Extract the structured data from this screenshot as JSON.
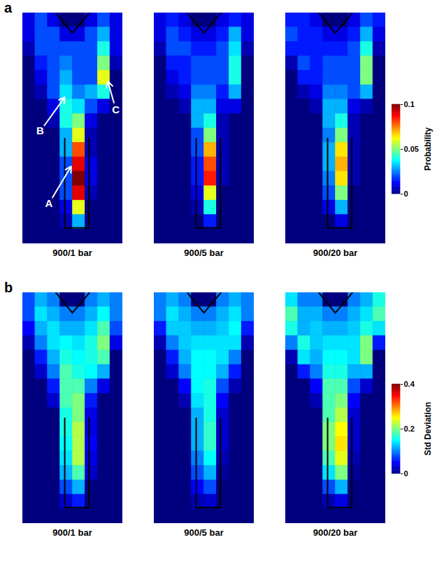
{
  "chart_data": [
    {
      "type": "heatmap",
      "panel": "a",
      "tick_labels": false,
      "color_label": "Probability",
      "color_range": [
        0,
        0.1
      ],
      "color_ticks": [
        0,
        0.05,
        0.1
      ],
      "panels": [
        {
          "label": "900/1 bar",
          "annotations": [
            {
              "text": "A",
              "from": [
                2.1,
                13.2
              ],
              "to": [
                3.9,
                10.6
              ]
            },
            {
              "text": "B",
              "from": [
                1.4,
                8.2
              ],
              "to": [
                3.4,
                5.8
              ]
            },
            {
              "text": "C",
              "from": [
                7.45,
                6.7
              ],
              "to": [
                6.8,
                4.7
              ]
            }
          ],
          "cells": [
            [
              0.01,
              0.02,
              0.01,
              0,
              0,
              0.01,
              0.02,
              0.01
            ],
            [
              0.01,
              0.02,
              0.02,
              0.01,
              0.01,
              0.02,
              0.03,
              0.01
            ],
            [
              0.005,
              0.02,
              0.02,
              0.02,
              0.02,
              0.02,
              0.04,
              0.01
            ],
            [
              0,
              0.015,
              0.02,
              0.025,
              0.02,
              0.02,
              0.05,
              0.005
            ],
            [
              0,
              0.01,
              0.02,
              0.03,
              0.02,
              0.02,
              0.06,
              0
            ],
            [
              0,
              0.005,
              0.02,
              0.035,
              0.025,
              0.03,
              0.04,
              0
            ],
            [
              0,
              0,
              0.01,
              0.04,
              0.035,
              0.02,
              0.01,
              0
            ],
            [
              0,
              0,
              0.005,
              0.04,
              0.05,
              0.01,
              0,
              0
            ],
            [
              0,
              0,
              0,
              0.03,
              0.06,
              0.005,
              0,
              0
            ],
            [
              0,
              0,
              0,
              0.03,
              0.08,
              0.005,
              0,
              0
            ],
            [
              0,
              0,
              0,
              0.02,
              0.09,
              0.01,
              0,
              0
            ],
            [
              0,
              0,
              0,
              0.02,
              0.1,
              0.01,
              0,
              0
            ],
            [
              0,
              0,
              0,
              0.02,
              0.09,
              0.005,
              0,
              0
            ],
            [
              0,
              0,
              0,
              0.01,
              0.06,
              0,
              0,
              0
            ],
            [
              0,
              0,
              0,
              0.005,
              0.03,
              0,
              0,
              0
            ],
            [
              0,
              0,
              0,
              0,
              0,
              0,
              0,
              0
            ]
          ]
        },
        {
          "label": "900/5 bar",
          "cells": [
            [
              0.01,
              0.015,
              0.01,
              0,
              0,
              0.01,
              0.015,
              0.01
            ],
            [
              0.01,
              0.02,
              0.015,
              0.01,
              0.01,
              0.015,
              0.03,
              0.01
            ],
            [
              0.005,
              0.02,
              0.02,
              0.015,
              0.015,
              0.02,
              0.035,
              0.005
            ],
            [
              0,
              0.015,
              0.015,
              0.02,
              0.02,
              0.02,
              0.04,
              0
            ],
            [
              0,
              0.01,
              0.015,
              0.02,
              0.02,
              0.02,
              0.04,
              0
            ],
            [
              0,
              0.005,
              0.01,
              0.025,
              0.025,
              0.015,
              0.03,
              0
            ],
            [
              0,
              0,
              0.005,
              0.03,
              0.03,
              0.01,
              0.01,
              0
            ],
            [
              0,
              0,
              0,
              0.03,
              0.04,
              0.005,
              0,
              0
            ],
            [
              0,
              0,
              0,
              0.02,
              0.05,
              0.005,
              0,
              0
            ],
            [
              0,
              0,
              0,
              0.02,
              0.07,
              0.005,
              0,
              0
            ],
            [
              0,
              0,
              0,
              0.015,
              0.08,
              0.005,
              0,
              0
            ],
            [
              0,
              0,
              0,
              0.015,
              0.085,
              0.005,
              0,
              0
            ],
            [
              0,
              0,
              0,
              0.01,
              0.06,
              0,
              0,
              0
            ],
            [
              0,
              0,
              0,
              0.005,
              0.04,
              0,
              0,
              0
            ],
            [
              0,
              0,
              0,
              0,
              0.015,
              0,
              0,
              0
            ],
            [
              0,
              0,
              0,
              0,
              0,
              0,
              0,
              0
            ]
          ]
        },
        {
          "label": "900/20 bar",
          "cells": [
            [
              0.015,
              0.015,
              0.01,
              0,
              0,
              0.01,
              0.02,
              0.015
            ],
            [
              0.02,
              0.015,
              0.015,
              0.01,
              0.01,
              0.015,
              0.03,
              0.01
            ],
            [
              0.015,
              0.015,
              0.015,
              0.015,
              0.015,
              0.02,
              0.04,
              0.005
            ],
            [
              0.005,
              0.02,
              0.015,
              0.02,
              0.02,
              0.02,
              0.05,
              0
            ],
            [
              0,
              0.015,
              0.015,
              0.02,
              0.02,
              0.02,
              0.05,
              0
            ],
            [
              0,
              0.005,
              0.01,
              0.025,
              0.025,
              0.02,
              0.03,
              0
            ],
            [
              0,
              0,
              0.005,
              0.03,
              0.03,
              0.01,
              0.005,
              0
            ],
            [
              0,
              0,
              0,
              0.03,
              0.04,
              0.005,
              0,
              0
            ],
            [
              0,
              0,
              0,
              0.025,
              0.05,
              0.005,
              0,
              0
            ],
            [
              0,
              0,
              0,
              0.03,
              0.065,
              0.005,
              0,
              0
            ],
            [
              0,
              0,
              0,
              0.03,
              0.07,
              0.005,
              0,
              0
            ],
            [
              0,
              0,
              0,
              0.025,
              0.065,
              0.005,
              0,
              0
            ],
            [
              0,
              0,
              0,
              0.02,
              0.05,
              0,
              0,
              0
            ],
            [
              0,
              0,
              0,
              0.01,
              0.03,
              0,
              0,
              0
            ],
            [
              0,
              0,
              0,
              0,
              0.01,
              0,
              0,
              0
            ],
            [
              0,
              0,
              0,
              0,
              0,
              0,
              0,
              0
            ]
          ]
        }
      ]
    },
    {
      "type": "heatmap",
      "panel": "b",
      "tick_labels": false,
      "color_label": "Std Deviation",
      "color_range": [
        0,
        0.4
      ],
      "color_ticks": [
        0,
        0.2,
        0.4
      ],
      "panels": [
        {
          "label": "900/1 bar",
          "cells": [
            [
              0.08,
              0.12,
              0.1,
              0,
              0,
              0.1,
              0.12,
              0.1
            ],
            [
              0.08,
              0.14,
              0.12,
              0.1,
              0.1,
              0.12,
              0.15,
              0.1
            ],
            [
              0.05,
              0.12,
              0.14,
              0.12,
              0.12,
              0.14,
              0.18,
              0.08
            ],
            [
              0.02,
              0.1,
              0.14,
              0.15,
              0.14,
              0.16,
              0.2,
              0.04
            ],
            [
              0,
              0.06,
              0.12,
              0.16,
              0.15,
              0.16,
              0.18,
              0
            ],
            [
              0,
              0.03,
              0.1,
              0.18,
              0.16,
              0.15,
              0.12,
              0
            ],
            [
              0,
              0,
              0.06,
              0.18,
              0.18,
              0.1,
              0.04,
              0
            ],
            [
              0,
              0,
              0.03,
              0.18,
              0.2,
              0.06,
              0,
              0
            ],
            [
              0,
              0,
              0,
              0.16,
              0.2,
              0.04,
              0,
              0
            ],
            [
              0,
              0,
              0,
              0.16,
              0.22,
              0.04,
              0,
              0
            ],
            [
              0,
              0,
              0,
              0.15,
              0.22,
              0.05,
              0,
              0
            ],
            [
              0,
              0,
              0,
              0.14,
              0.22,
              0.04,
              0,
              0
            ],
            [
              0,
              0,
              0,
              0.12,
              0.18,
              0.03,
              0,
              0
            ],
            [
              0,
              0,
              0,
              0.08,
              0.12,
              0,
              0,
              0
            ],
            [
              0,
              0,
              0,
              0.03,
              0.06,
              0,
              0,
              0
            ],
            [
              0,
              0,
              0,
              0,
              0,
              0,
              0,
              0
            ]
          ]
        },
        {
          "label": "900/5 bar",
          "cells": [
            [
              0.1,
              0.12,
              0.1,
              0,
              0,
              0.1,
              0.12,
              0.1
            ],
            [
              0.1,
              0.14,
              0.12,
              0.1,
              0.1,
              0.12,
              0.14,
              0.1
            ],
            [
              0.06,
              0.13,
              0.13,
              0.12,
              0.12,
              0.13,
              0.15,
              0.06
            ],
            [
              0.02,
              0.1,
              0.13,
              0.14,
              0.14,
              0.14,
              0.14,
              0.02
            ],
            [
              0,
              0.06,
              0.12,
              0.15,
              0.15,
              0.14,
              0.1,
              0
            ],
            [
              0,
              0.03,
              0.1,
              0.15,
              0.15,
              0.12,
              0.06,
              0
            ],
            [
              0,
              0,
              0.05,
              0.15,
              0.16,
              0.08,
              0.02,
              0
            ],
            [
              0,
              0,
              0.02,
              0.14,
              0.16,
              0.05,
              0,
              0
            ],
            [
              0,
              0,
              0,
              0.12,
              0.16,
              0.03,
              0,
              0
            ],
            [
              0,
              0,
              0,
              0.12,
              0.17,
              0.03,
              0,
              0
            ],
            [
              0,
              0,
              0,
              0.12,
              0.17,
              0.03,
              0,
              0
            ],
            [
              0,
              0,
              0,
              0.1,
              0.15,
              0.02,
              0,
              0
            ],
            [
              0,
              0,
              0,
              0.08,
              0.12,
              0.01,
              0,
              0
            ],
            [
              0,
              0,
              0,
              0.05,
              0.08,
              0,
              0,
              0
            ],
            [
              0,
              0,
              0,
              0.02,
              0.03,
              0,
              0,
              0
            ],
            [
              0,
              0,
              0,
              0,
              0,
              0,
              0,
              0
            ]
          ]
        },
        {
          "label": "900/20 bar",
          "cells": [
            [
              0.14,
              0.1,
              0.1,
              0,
              0,
              0.1,
              0.12,
              0.16
            ],
            [
              0.18,
              0.12,
              0.12,
              0.1,
              0.1,
              0.12,
              0.14,
              0.18
            ],
            [
              0.16,
              0.12,
              0.13,
              0.12,
              0.12,
              0.13,
              0.16,
              0.14
            ],
            [
              0.1,
              0.16,
              0.13,
              0.14,
              0.14,
              0.14,
              0.2,
              0.06
            ],
            [
              0.02,
              0.14,
              0.12,
              0.15,
              0.15,
              0.14,
              0.2,
              0
            ],
            [
              0,
              0.06,
              0.1,
              0.16,
              0.16,
              0.12,
              0.12,
              0
            ],
            [
              0,
              0,
              0.05,
              0.18,
              0.18,
              0.08,
              0.03,
              0
            ],
            [
              0,
              0,
              0.02,
              0.18,
              0.2,
              0.05,
              0,
              0
            ],
            [
              0,
              0,
              0,
              0.18,
              0.22,
              0.03,
              0,
              0
            ],
            [
              0,
              0,
              0,
              0.2,
              0.25,
              0.03,
              0,
              0
            ],
            [
              0,
              0,
              0,
              0.2,
              0.26,
              0.03,
              0,
              0
            ],
            [
              0,
              0,
              0,
              0.18,
              0.24,
              0.02,
              0,
              0
            ],
            [
              0,
              0,
              0,
              0.14,
              0.2,
              0.01,
              0,
              0
            ],
            [
              0,
              0,
              0,
              0.08,
              0.12,
              0,
              0,
              0
            ],
            [
              0,
              0,
              0,
              0.02,
              0.04,
              0,
              0,
              0
            ],
            [
              0,
              0,
              0,
              0,
              0,
              0,
              0,
              0
            ]
          ]
        }
      ]
    }
  ]
}
